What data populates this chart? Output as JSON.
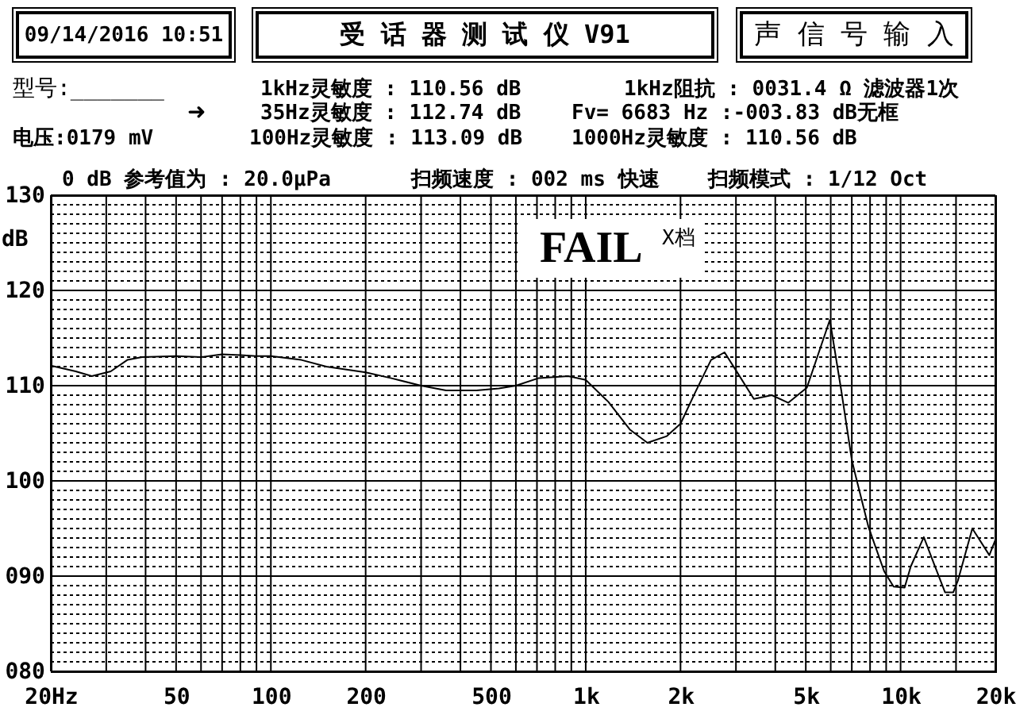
{
  "chart_data": {
    "type": "line",
    "title": "受 话 器 测 试 仪 V91",
    "ylabel": "dB",
    "annotations": [
      "09/14/2016 10:51",
      "声 信 号 输 入",
      "型号:_______",
      "1kHz灵敏度 : 110.56 dB",
      "1kHz阻抗 : 0031.4 Ω 滤波器1次",
      "➜",
      "35Hz灵敏度 : 112.74 dB",
      "Fv= 6683 Hz :-003.83 dB无框",
      "电压:0179 mV",
      "100Hz灵敏度 : 113.09 dB",
      "1000Hz灵敏度 : 110.56 dB",
      "0 dB 参考值为 : 20.0μPa",
      "扫频速度 : 002 ms 快速",
      "扫频模式 : 1/12 Oct",
      "FAIL",
      "X档"
    ],
    "x": [
      20,
      24,
      27,
      31,
      35,
      39,
      50,
      60,
      70,
      80,
      90,
      100,
      125,
      150,
      200,
      240,
      300,
      360,
      450,
      530,
      600,
      710,
      880,
      1000,
      1180,
      1380,
      1570,
      1810,
      2000,
      2220,
      2500,
      2760,
      3040,
      3420,
      3900,
      4400,
      5040,
      5960,
      6480,
      7000,
      7140,
      7900,
      8870,
      9500,
      10300,
      10770,
      11850,
      12800,
      13840,
      14700,
      15200,
      16900,
      19140,
      20000
    ],
    "series": [
      {
        "color": "#000000",
        "values": [
          112.1,
          111.5,
          111.0,
          111.5,
          112.7,
          113.0,
          113.1,
          113.0,
          113.3,
          113.2,
          113.1,
          113.1,
          112.7,
          112.0,
          111.4,
          110.8,
          110.0,
          109.5,
          109.5,
          109.7,
          110.0,
          110.8,
          111.0,
          110.6,
          108.3,
          105.4,
          104.0,
          104.7,
          106.0,
          109.2,
          112.7,
          113.5,
          111.3,
          108.6,
          109.0,
          108.2,
          109.8,
          116.9,
          109.5,
          102.2,
          101.0,
          95.2,
          90.5,
          88.9,
          88.8,
          91.0,
          94.1,
          91.2,
          88.3,
          88.3,
          89.5,
          95.0,
          92.2,
          93.8
        ]
      }
    ],
    "log": "x",
    "grid": true,
    "xlim": [
      20,
      20000
    ],
    "ylim": [
      80,
      130
    ],
    "xticks": [
      {
        "value": 20,
        "label": "20Hz"
      },
      {
        "value": 30,
        "label": null
      },
      {
        "value": 40,
        "label": null
      },
      50,
      {
        "value": 60,
        "label": null
      },
      {
        "value": 70,
        "label": null
      },
      {
        "value": 80,
        "label": null
      },
      {
        "value": 90,
        "label": null
      },
      100,
      200,
      {
        "value": 300,
        "label": null
      },
      {
        "value": 400,
        "label": null
      },
      500,
      {
        "value": 600,
        "label": null
      },
      {
        "value": 700,
        "label": null
      },
      {
        "value": 800,
        "label": null
      },
      {
        "value": 900,
        "label": null
      },
      {
        "value": 1000,
        "label": "1k"
      },
      {
        "value": 2000,
        "label": "2k"
      },
      {
        "value": 3000,
        "label": null
      },
      {
        "value": 4000,
        "label": null
      },
      {
        "value": 5000,
        "label": "5k"
      },
      {
        "value": 6000,
        "label": null
      },
      {
        "value": 7000,
        "label": null
      },
      {
        "value": 8000,
        "label": null
      },
      {
        "value": 9000,
        "label": null
      },
      {
        "value": 10000,
        "label": "10k"
      },
      {
        "value": 15000,
        "label": null
      },
      {
        "value": 20000,
        "label": "20k"
      }
    ],
    "yticks": [
      {
        "value": 80,
        "label": "080"
      },
      {
        "value": 81,
        "label": null
      },
      {
        "value": 82,
        "label": null
      },
      {
        "value": 83,
        "label": null
      },
      {
        "value": 84,
        "label": null
      },
      {
        "value": 85,
        "label": null
      },
      {
        "value": 86,
        "label": null
      },
      {
        "value": 87,
        "label": null
      },
      {
        "value": 88,
        "label": null
      },
      {
        "value": 89,
        "label": null
      },
      {
        "value": 90,
        "label": "090"
      },
      {
        "value": 91,
        "label": null
      },
      {
        "value": 92,
        "label": null
      },
      {
        "value": 93,
        "label": null
      },
      {
        "value": 94,
        "label": null
      },
      {
        "value": 95,
        "label": null
      },
      {
        "value": 96,
        "label": null
      },
      {
        "value": 97,
        "label": null
      },
      {
        "value": 98,
        "label": null
      },
      {
        "value": 99,
        "label": null
      },
      100,
      {
        "value": 101,
        "label": null
      },
      {
        "value": 102,
        "label": null
      },
      {
        "value": 103,
        "label": null
      },
      {
        "value": 104,
        "label": null
      },
      {
        "value": 105,
        "label": null
      },
      {
        "value": 106,
        "label": null
      },
      {
        "value": 107,
        "label": null
      },
      {
        "value": 108,
        "label": null
      },
      {
        "value": 109,
        "label": null
      },
      110,
      {
        "value": 111,
        "label": null
      },
      {
        "value": 112,
        "label": null
      },
      {
        "value": 113,
        "label": null
      },
      {
        "value": 114,
        "label": null
      },
      {
        "value": 115,
        "label": null
      },
      {
        "value": 116,
        "label": null
      },
      {
        "value": 117,
        "label": null
      },
      {
        "value": 118,
        "label": null
      },
      {
        "value": 119,
        "label": null
      },
      120,
      {
        "value": 121,
        "label": null
      },
      {
        "value": 122,
        "label": null
      },
      {
        "value": 123,
        "label": null
      },
      {
        "value": 124,
        "label": null
      },
      {
        "value": 125,
        "label": null
      },
      {
        "value": 126,
        "label": null
      },
      {
        "value": 127,
        "label": null
      },
      {
        "value": 128,
        "label": null
      },
      {
        "value": 129,
        "label": null
      },
      130
    ]
  }
}
